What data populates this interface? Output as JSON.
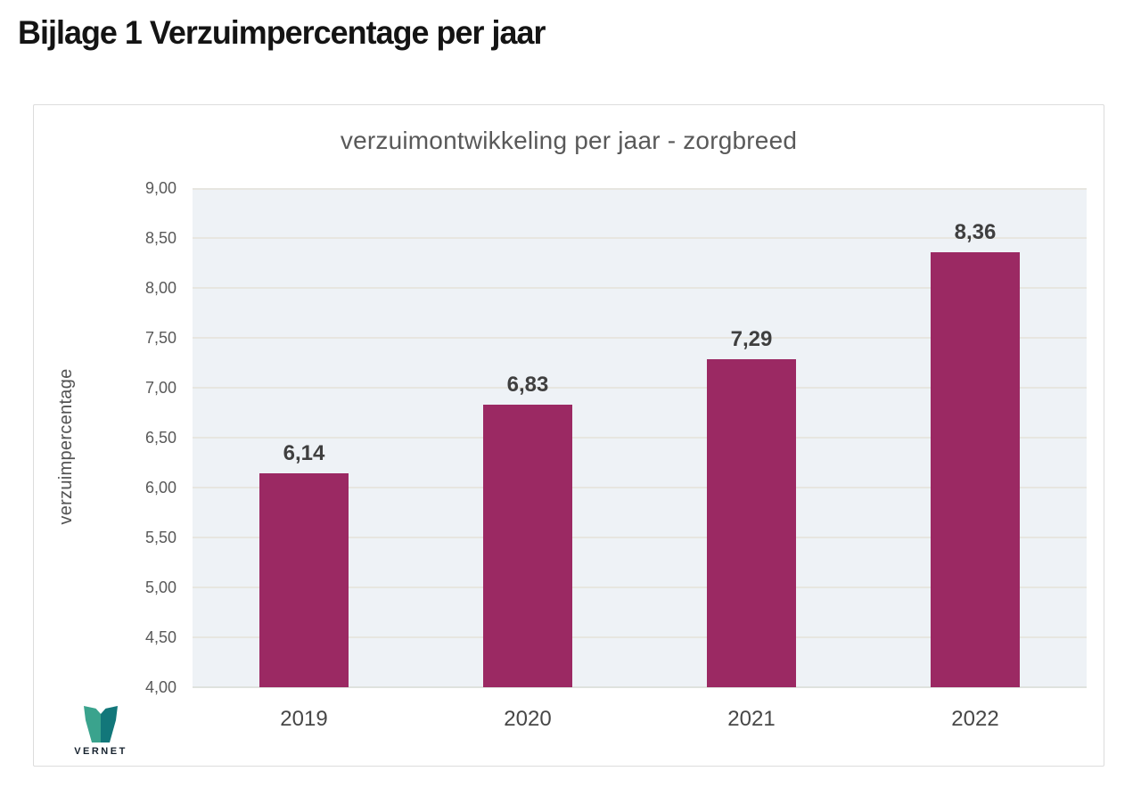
{
  "page": {
    "title": "Bijlage 1 Verzuimpercentage per jaar"
  },
  "chart_data": {
    "type": "bar",
    "title": "verzuimontwikkeling per jaar - zorgbreed",
    "xlabel": "",
    "ylabel": "verzuimpercentage",
    "categories": [
      "2019",
      "2020",
      "2021",
      "2022"
    ],
    "values": [
      6.14,
      6.83,
      7.29,
      8.36
    ],
    "value_labels": [
      "6,14",
      "6,83",
      "7,29",
      "8,36"
    ],
    "ylim": [
      4.0,
      9.0
    ],
    "ytick_step": 0.5,
    "ytick_labels": [
      "9,00",
      "8,50",
      "8,00",
      "7,50",
      "7,00",
      "6,50",
      "6,00",
      "5,50",
      "5,00",
      "4,50",
      "4,00"
    ],
    "grid": true,
    "legend": false,
    "bar_color": "#9B2963",
    "plot_background": "#eef2f6"
  },
  "logo": {
    "text": "VERNET",
    "color_light": "#3aa38d",
    "color_dark": "#12777a"
  }
}
